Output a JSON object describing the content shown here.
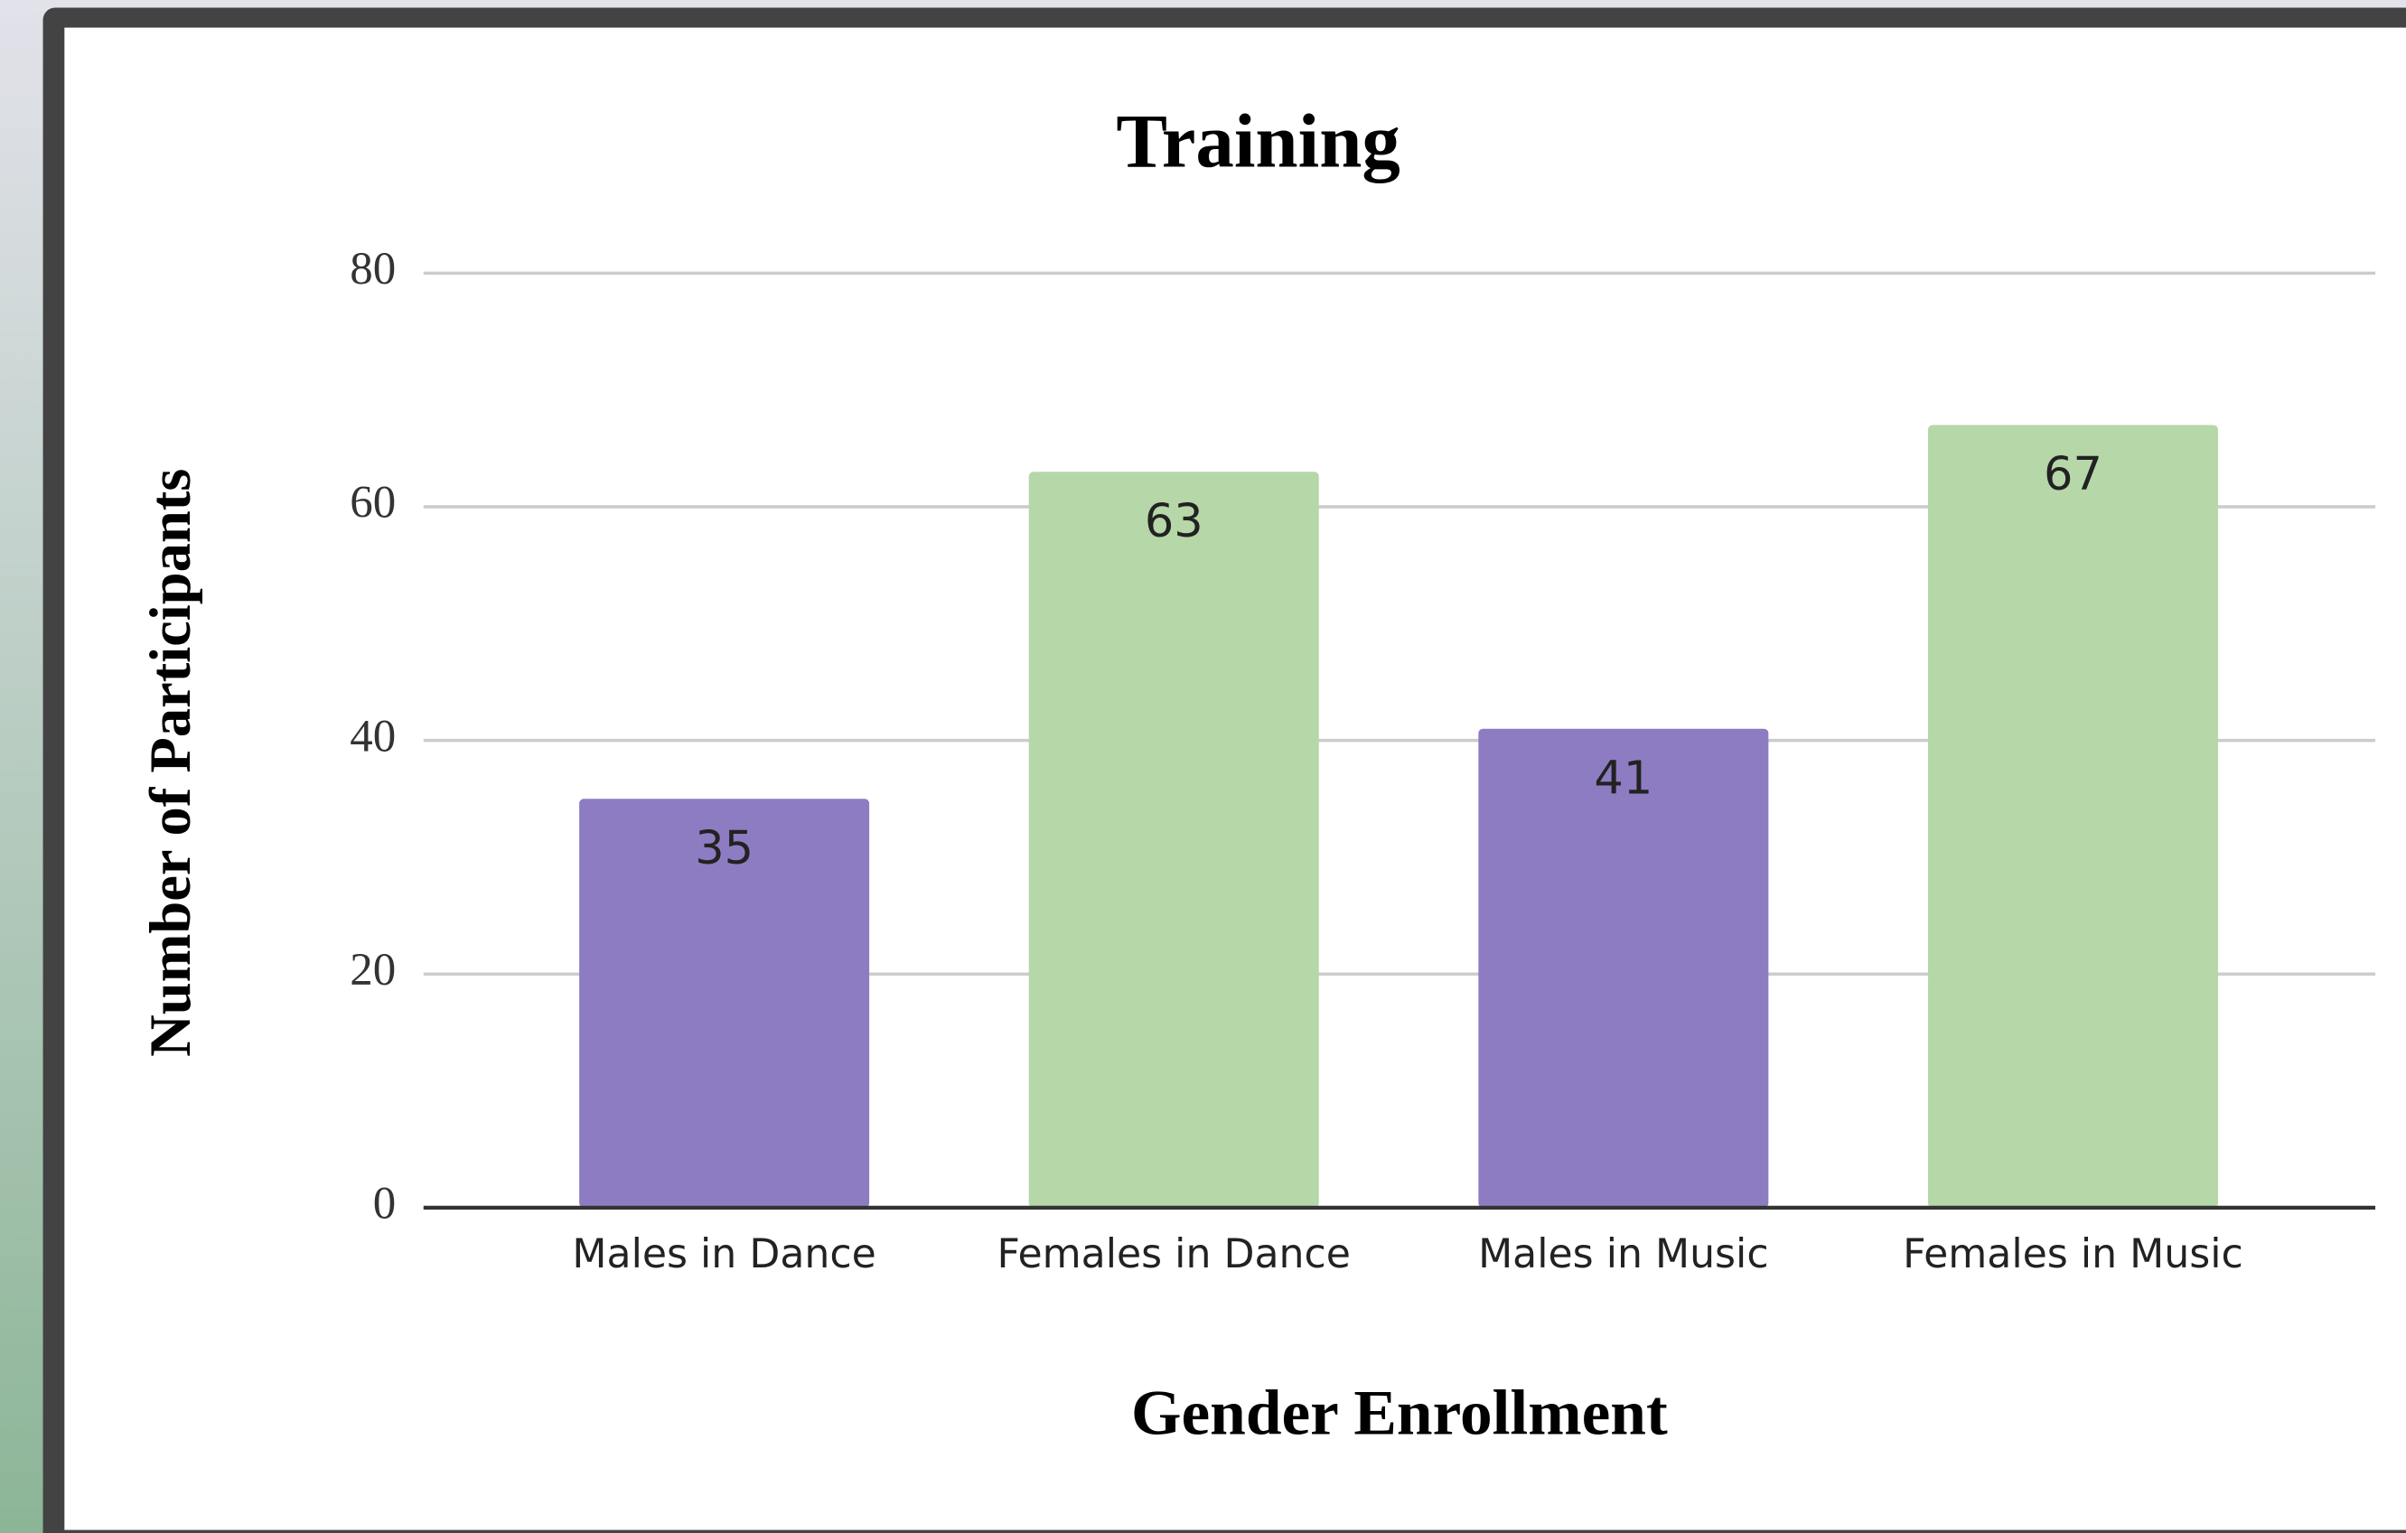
{
  "chart_data": {
    "type": "bar",
    "title": "Training",
    "x_label": "Gender Enrollment",
    "y_label": "Number of Participants",
    "categories": [
      "Males in Dance",
      "Females in Dance",
      "Males in Music",
      "Females in Music"
    ],
    "values": [
      35,
      63,
      41,
      67
    ],
    "colors": [
      "#8e7cc3",
      "#b6d7a8",
      "#8e7cc3",
      "#b6d7a8"
    ],
    "ylim": [
      0,
      80
    ],
    "yticks": [
      0,
      20,
      40,
      60,
      80
    ],
    "grid": true
  }
}
